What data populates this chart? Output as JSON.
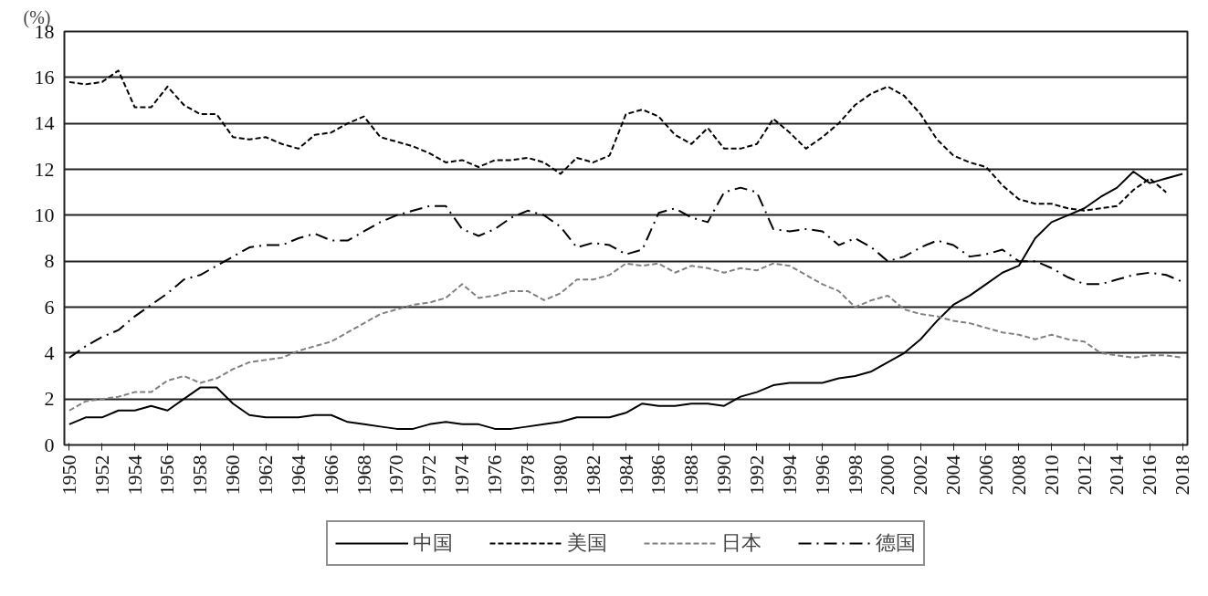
{
  "chart_data": {
    "type": "line",
    "ylabel": "(%)",
    "x": [
      1950,
      1951,
      1952,
      1953,
      1954,
      1955,
      1956,
      1957,
      1958,
      1959,
      1960,
      1961,
      1962,
      1963,
      1964,
      1965,
      1966,
      1967,
      1968,
      1969,
      1970,
      1971,
      1972,
      1973,
      1974,
      1975,
      1976,
      1977,
      1978,
      1979,
      1980,
      1981,
      1982,
      1983,
      1984,
      1985,
      1986,
      1987,
      1988,
      1989,
      1990,
      1991,
      1992,
      1993,
      1994,
      1995,
      1996,
      1997,
      1998,
      1999,
      2000,
      2001,
      2002,
      2003,
      2004,
      2005,
      2006,
      2007,
      2008,
      2009,
      2010,
      2011,
      2012,
      2013,
      2014,
      2015,
      2016,
      2017,
      2018
    ],
    "xlim": [
      1949.7,
      2018.3
    ],
    "xticks": [
      1950,
      1952,
      1954,
      1956,
      1958,
      1960,
      1962,
      1964,
      1966,
      1968,
      1970,
      1972,
      1974,
      1976,
      1978,
      1980,
      1982,
      1984,
      1986,
      1988,
      1990,
      1992,
      1994,
      1996,
      1998,
      2000,
      2002,
      2004,
      2006,
      2008,
      2010,
      2012,
      2014,
      2016,
      2018
    ],
    "ylim": [
      0,
      18
    ],
    "yticks": [
      0,
      2,
      4,
      6,
      8,
      10,
      12,
      14,
      16,
      18
    ],
    "grid": "y",
    "legend": "bottom",
    "series": [
      {
        "name": "中国",
        "color": "#000000",
        "line_style": "solid",
        "values": [
          0.9,
          1.2,
          1.2,
          1.5,
          1.5,
          1.7,
          1.5,
          2.0,
          2.5,
          2.5,
          1.8,
          1.3,
          1.2,
          1.2,
          1.2,
          1.3,
          1.3,
          1.0,
          0.9,
          0.8,
          0.7,
          0.7,
          0.9,
          1.0,
          0.9,
          0.9,
          0.7,
          0.7,
          0.8,
          0.9,
          1.0,
          1.2,
          1.2,
          1.2,
          1.4,
          1.8,
          1.7,
          1.7,
          1.8,
          1.8,
          1.7,
          2.1,
          2.3,
          2.6,
          2.7,
          2.7,
          2.7,
          2.9,
          3.0,
          3.2,
          3.6,
          4.0,
          4.6,
          5.4,
          6.1,
          6.5,
          7.0,
          7.5,
          7.8,
          9.0,
          9.7,
          10.0,
          10.3,
          10.8,
          11.2,
          11.9,
          11.4,
          11.6,
          11.8
        ]
      },
      {
        "name": "美国",
        "color": "#000000",
        "line_style": "dashed",
        "values": [
          15.8,
          15.7,
          15.8,
          16.3,
          14.7,
          14.7,
          15.6,
          14.8,
          14.4,
          14.4,
          13.4,
          13.3,
          13.4,
          13.1,
          12.9,
          13.5,
          13.6,
          14.0,
          14.3,
          13.4,
          13.2,
          13.0,
          12.7,
          12.3,
          12.4,
          12.1,
          12.4,
          12.4,
          12.5,
          12.3,
          11.8,
          12.5,
          12.3,
          12.6,
          14.4,
          14.6,
          14.3,
          13.5,
          13.1,
          13.8,
          12.9,
          12.9,
          13.1,
          14.2,
          13.6,
          12.9,
          13.4,
          14.0,
          14.8,
          15.3,
          15.6,
          15.2,
          14.4,
          13.3,
          12.6,
          12.3,
          12.1,
          11.3,
          10.7,
          10.5,
          10.5,
          10.3,
          10.2,
          10.3,
          10.4,
          11.1,
          11.6,
          11.0,
          null
        ]
      },
      {
        "name": "日本",
        "color": "#808080",
        "line_style": "dashed",
        "values": [
          1.5,
          1.9,
          2.0,
          2.1,
          2.3,
          2.3,
          2.8,
          3.0,
          2.7,
          2.9,
          3.3,
          3.6,
          3.7,
          3.8,
          4.1,
          4.3,
          4.5,
          4.9,
          5.3,
          5.7,
          5.9,
          6.1,
          6.2,
          6.4,
          7.0,
          6.4,
          6.5,
          6.7,
          6.7,
          6.3,
          6.6,
          7.2,
          7.2,
          7.4,
          7.9,
          7.8,
          7.9,
          7.5,
          7.8,
          7.7,
          7.5,
          7.7,
          7.6,
          7.9,
          7.8,
          7.4,
          7.0,
          6.7,
          6.0,
          6.3,
          6.5,
          5.9,
          5.7,
          5.6,
          5.4,
          5.3,
          5.1,
          4.9,
          4.8,
          4.6,
          4.8,
          4.6,
          4.5,
          4.0,
          3.9,
          3.8,
          3.9,
          3.9,
          3.8
        ]
      },
      {
        "name": "德国",
        "color": "#000000",
        "line_style": "dashdot",
        "values": [
          3.8,
          4.3,
          4.7,
          5.0,
          5.6,
          6.1,
          6.6,
          7.2,
          7.4,
          7.8,
          8.2,
          8.6,
          8.7,
          8.7,
          9.0,
          9.2,
          8.9,
          8.9,
          9.3,
          9.7,
          10.0,
          10.2,
          10.4,
          10.4,
          9.4,
          9.1,
          9.4,
          9.9,
          10.2,
          10.0,
          9.5,
          8.6,
          8.8,
          8.7,
          8.3,
          8.5,
          10.1,
          10.3,
          9.9,
          9.7,
          11.0,
          11.2,
          11.0,
          9.4,
          9.3,
          9.4,
          9.3,
          8.7,
          9.0,
          8.6,
          8.0,
          8.2,
          8.6,
          8.9,
          8.7,
          8.2,
          8.3,
          8.5,
          8.0,
          8.0,
          7.7,
          7.3,
          7.0,
          7.0,
          7.2,
          7.4,
          7.5,
          7.4,
          7.1
        ]
      }
    ]
  }
}
